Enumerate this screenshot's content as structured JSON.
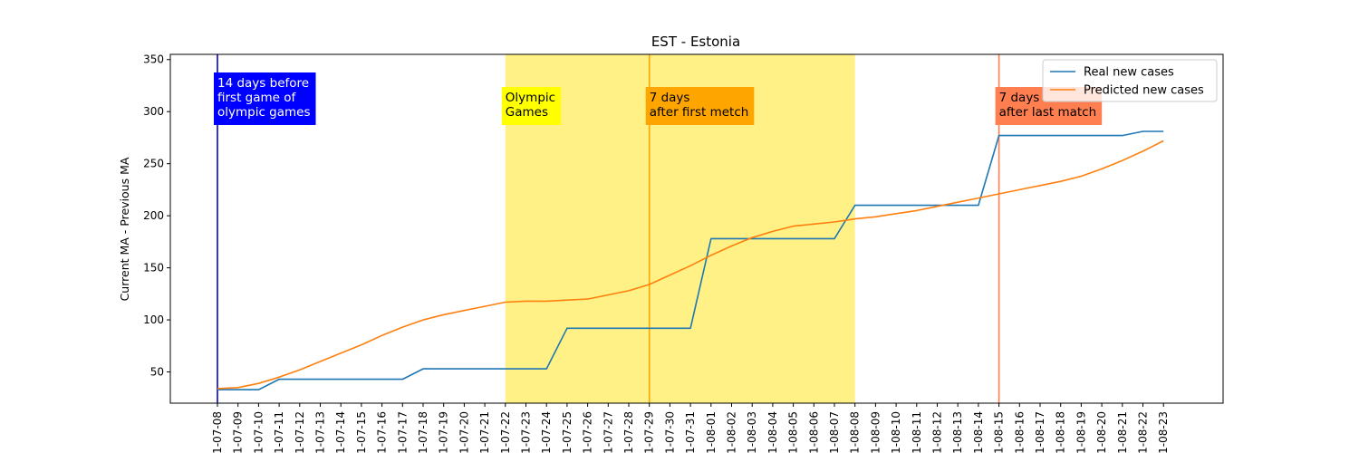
{
  "chart_data": {
    "type": "line",
    "title": "EST - Estonia",
    "xlabel": "",
    "ylabel": "Current MA - Previous MA",
    "ylim": [
      20,
      355
    ],
    "yticks": [
      50,
      100,
      150,
      200,
      250,
      300,
      350
    ],
    "grid": false,
    "legend_position": "top-right",
    "categories": [
      "2021-07-08",
      "2021-07-09",
      "2021-07-10",
      "2021-07-11",
      "2021-07-12",
      "2021-07-13",
      "2021-07-14",
      "2021-07-15",
      "2021-07-16",
      "2021-07-17",
      "2021-07-18",
      "2021-07-19",
      "2021-07-20",
      "2021-07-21",
      "2021-07-22",
      "2021-07-23",
      "2021-07-24",
      "2021-07-25",
      "2021-07-26",
      "2021-07-27",
      "2021-07-28",
      "2021-07-29",
      "2021-07-30",
      "2021-07-31",
      "2021-08-01",
      "2021-08-02",
      "2021-08-03",
      "2021-08-04",
      "2021-08-05",
      "2021-08-06",
      "2021-08-07",
      "2021-08-08",
      "2021-08-09",
      "2021-08-10",
      "2021-08-11",
      "2021-08-12",
      "2021-08-13",
      "2021-08-14",
      "2021-08-15",
      "2021-08-16",
      "2021-08-17",
      "2021-08-18",
      "2021-08-19",
      "2021-08-20",
      "2021-08-21",
      "2021-08-22",
      "2021-08-23"
    ],
    "series": [
      {
        "name": "Real new cases",
        "color": "#1f77b4",
        "values": [
          33,
          33,
          33,
          43,
          43,
          43,
          43,
          43,
          43,
          43,
          53,
          53,
          53,
          53,
          53,
          53,
          53,
          92,
          92,
          92,
          92,
          92,
          92,
          92,
          178,
          178,
          178,
          178,
          178,
          178,
          178,
          210,
          210,
          210,
          210,
          210,
          210,
          210,
          277,
          277,
          277,
          277,
          277,
          277,
          277,
          281,
          281
        ]
      },
      {
        "name": "Predicted new cases",
        "color": "#ff7f0e",
        "values": [
          34,
          35,
          39,
          45,
          52,
          60,
          68,
          76,
          85,
          93,
          100,
          105,
          109,
          113,
          117,
          118,
          118,
          119,
          120,
          124,
          128,
          134,
          143,
          152,
          162,
          171,
          179,
          185,
          190,
          192,
          194,
          197,
          199,
          202,
          205,
          209,
          213,
          217,
          221,
          225,
          229,
          233,
          238,
          245,
          253,
          262,
          272
        ]
      }
    ],
    "shaded_region": {
      "start": "2021-07-22",
      "end": "2021-08-08",
      "color": "#fff080"
    },
    "vlines": [
      {
        "x": "2021-07-08",
        "color": "#0000cd"
      },
      {
        "x": "2021-07-29",
        "color": "#ffa500"
      },
      {
        "x": "2021-08-15",
        "color": "#ff7f50"
      }
    ],
    "annotations": [
      {
        "x": "2021-07-08",
        "lines": [
          "14 days before",
          "first game of",
          "olympic games"
        ],
        "bg": "#0000ff",
        "fg": "#ffffff"
      },
      {
        "x": "2021-07-22",
        "lines": [
          "Olympic",
          "Games"
        ],
        "bg": "#ffff00",
        "fg": "#000000"
      },
      {
        "x": "2021-07-29",
        "lines": [
          "7 days",
          "after first metch"
        ],
        "bg": "#ffa500",
        "fg": "#000000"
      },
      {
        "x": "2021-08-15",
        "lines": [
          "7 days",
          "after last match"
        ],
        "bg": "#ff7f50",
        "fg": "#000000"
      }
    ]
  }
}
